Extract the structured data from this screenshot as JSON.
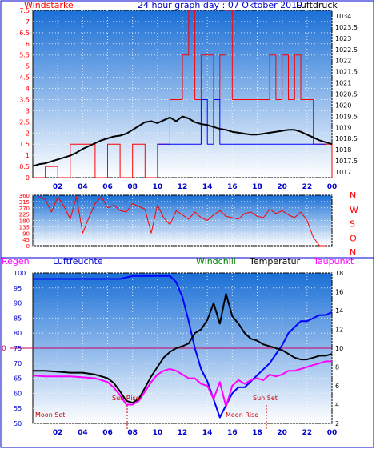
{
  "title": "24 hour graph day : 07 Oktober 2019",
  "colors": {
    "frame": "#0000cc",
    "wind": "#ff0000",
    "gust": "#0000ff",
    "pressure": "#000000",
    "temp": "#000000",
    "humid": "#0000ff",
    "dew": "#ff00ff",
    "windchill": "#008000",
    "zero": "#cc0066",
    "sky_top": "#1a6fd6",
    "sky_bottom": "#ffffff"
  },
  "x_ticks": [
    "02",
    "04",
    "06",
    "08",
    "10",
    "12",
    "14",
    "16",
    "18",
    "20",
    "22",
    "00"
  ],
  "chart_data": [
    {
      "type": "line",
      "title": "24 hour graph day : 07 Oktober 2019",
      "left_label": "Windstärke",
      "right_label": "Luftdruck",
      "left_ticks": [
        "7.5",
        "7",
        "6.5",
        "6",
        "5.5",
        "5",
        "4.5",
        "4",
        "3.5",
        "3",
        "2.5",
        "2",
        "1.5",
        "1",
        "0.5",
        "0"
      ],
      "right_ticks": [
        "1034",
        "1023.5",
        "1023",
        "1022.5",
        "1022",
        "1021.5",
        "1021",
        "1020.5",
        "1020",
        "1019.5",
        "1019",
        "1018.5",
        "1018",
        "1017.5",
        "1017"
      ],
      "ylim_left": [
        0,
        7.5
      ],
      "ylim_right": [
        1016.5,
        1034
      ],
      "series": [
        {
          "name": "Luftdruck",
          "x": [
            0,
            0.5,
            1,
            1.5,
            2,
            2.5,
            3,
            3.5,
            4,
            4.5,
            5,
            5.5,
            6,
            6.5,
            7,
            7.5,
            8,
            8.5,
            9,
            9.5,
            10,
            10.5,
            11,
            11.5,
            12,
            12.5,
            13,
            13.5,
            14,
            14.5,
            15,
            15.5,
            16,
            16.5,
            17,
            17.5,
            18,
            18.5,
            19,
            19.5,
            20,
            20.5,
            21,
            21.5,
            22,
            22.5,
            23,
            23.5,
            24
          ],
          "y": [
            1017.7,
            1017.9,
            1018.0,
            1018.2,
            1018.4,
            1018.6,
            1018.8,
            1019.1,
            1019.5,
            1019.8,
            1020.1,
            1020.4,
            1020.6,
            1020.8,
            1020.9,
            1021.1,
            1021.5,
            1021.9,
            1022.3,
            1022.4,
            1022.2,
            1022.5,
            1022.8,
            1022.4,
            1022.9,
            1022.7,
            1022.3,
            1022.1,
            1022.0,
            1021.8,
            1021.6,
            1021.5,
            1021.3,
            1021.2,
            1021.1,
            1021.0,
            1021.0,
            1021.1,
            1021.2,
            1021.3,
            1021.4,
            1021.5,
            1021.5,
            1021.3,
            1021.0,
            1020.7,
            1020.4,
            1020.2,
            1020.0
          ]
        },
        {
          "name": "Windstärke",
          "x": [
            0,
            1,
            2,
            3,
            4,
            5,
            6,
            7,
            8,
            9,
            10,
            10.5,
            11,
            11.5,
            12,
            12.5,
            13,
            13.5,
            14,
            14.5,
            15,
            15.5,
            16,
            16.5,
            17,
            17.5,
            18,
            18.5,
            19,
            19.5,
            20,
            20.5,
            21,
            21.5,
            22,
            22.5,
            23,
            23.5,
            24
          ],
          "y": [
            0,
            0.5,
            0,
            1.5,
            1.5,
            0,
            1.5,
            0,
            1.5,
            0,
            1.5,
            1.5,
            3.5,
            3.5,
            5.5,
            7.5,
            3.5,
            5.5,
            5.5,
            3.5,
            5.5,
            7.5,
            3.5,
            3.5,
            3.5,
            3.5,
            3.5,
            3.5,
            5.5,
            3.5,
            5.5,
            3.5,
            5.5,
            3.5,
            3.5,
            1.5,
            1.5,
            1.5,
            0
          ]
        },
        {
          "name": "Böen",
          "x": [
            10,
            10.5,
            11,
            11.5,
            12,
            12.5,
            13,
            13.5,
            14,
            14.5,
            15,
            15.5,
            16,
            16.5,
            17,
            17.5,
            18,
            18.5,
            19,
            19.5,
            20,
            20.5,
            21,
            21.5,
            22,
            22.5,
            23,
            23.5
          ],
          "y": [
            1.5,
            1.5,
            1.5,
            1.5,
            1.5,
            1.5,
            1.5,
            3.5,
            1.5,
            3.5,
            1.5,
            1.5,
            1.5,
            1.5,
            1.5,
            1.5,
            1.5,
            1.5,
            1.5,
            1.5,
            1.5,
            1.5,
            1.5,
            1.5,
            1.5,
            1.5,
            1.5,
            1.5
          ]
        }
      ]
    },
    {
      "type": "scatter",
      "left_ticks": [
        "360",
        "315",
        "270",
        "225",
        "180",
        "135",
        "90",
        "45",
        "0"
      ],
      "right_labels": [
        "N",
        "W",
        "S",
        "O",
        "N"
      ],
      "ylim": [
        0,
        360
      ],
      "series": [
        {
          "name": "Windrichtung",
          "x": [
            0.5,
            1,
            1.5,
            2,
            2.5,
            3,
            3.5,
            4,
            4.5,
            5,
            5.5,
            6,
            6.5,
            7,
            7.5,
            8,
            8.5,
            9,
            9.5,
            10,
            10.5,
            11,
            11.5,
            12,
            12.5,
            13,
            13.5,
            14,
            14.5,
            15,
            15.5,
            16,
            16.5,
            17,
            17.5,
            18,
            18.5,
            19,
            19.5,
            20,
            20.5,
            21,
            21.5,
            22,
            22.5,
            23,
            23.5
          ],
          "y": [
            350,
            330,
            240,
            350,
            280,
            190,
            350,
            90,
            200,
            300,
            350,
            270,
            290,
            250,
            240,
            300,
            280,
            260,
            90,
            290,
            200,
            150,
            250,
            220,
            190,
            240,
            200,
            180,
            220,
            250,
            210,
            200,
            190,
            230,
            240,
            210,
            200,
            260,
            230,
            250,
            220,
            200,
            240,
            180,
            60,
            0,
            0
          ]
        }
      ]
    },
    {
      "type": "line",
      "labels": {
        "regen": "Regen",
        "luftfeuchte": "Luftfeuchte",
        "windchill": "Windchill",
        "temperatur": "Temperatur",
        "taupunkt": "Taupunkt"
      },
      "left_ticks": [
        "100",
        "95",
        "90",
        "85",
        "80",
        "75",
        "70",
        "65",
        "60",
        "55",
        "50"
      ],
      "right_ticks": [
        "18",
        "16",
        "14",
        "12",
        "10",
        "8",
        "6",
        "4",
        "2"
      ],
      "zero_label": "0",
      "ylim_left": [
        50,
        100
      ],
      "ylim_right": [
        2,
        18
      ],
      "annotations": [
        "Moon Set",
        "Sun Rise",
        "Sun Set",
        "Moon Rise"
      ],
      "series": [
        {
          "name": "Luftfeuchte",
          "x": [
            0,
            1,
            2,
            3,
            4,
            5,
            6,
            7,
            8,
            9,
            10,
            11,
            11.5,
            12,
            12.5,
            13,
            13.5,
            14,
            14.5,
            15,
            15.5,
            16,
            16.5,
            17,
            17.5,
            18,
            18.5,
            19,
            19.5,
            20,
            20.5,
            21,
            21.5,
            22,
            22.5,
            23,
            23.5,
            24
          ],
          "y": [
            98,
            98,
            98,
            98,
            98,
            98,
            98,
            98,
            99,
            99,
            99,
            99,
            97,
            92,
            84,
            75,
            68,
            64,
            58,
            52,
            56,
            60,
            62,
            62,
            64,
            66,
            68,
            70,
            73,
            76,
            80,
            82,
            84,
            84,
            85,
            86,
            86,
            87
          ]
        },
        {
          "name": "Temperatur",
          "x": [
            0,
            1,
            2,
            3,
            4,
            5,
            6,
            6.5,
            7,
            7.5,
            8,
            8.5,
            9,
            9.5,
            10,
            10.5,
            11,
            11.5,
            12,
            12.5,
            13,
            13.5,
            14,
            14.5,
            15,
            15.5,
            16,
            16.5,
            17,
            17.5,
            18,
            18.5,
            19,
            19.5,
            20,
            20.5,
            21,
            21.5,
            22,
            22.5,
            23,
            23.5,
            24
          ],
          "y": [
            7.6,
            7.6,
            7.5,
            7.4,
            7.4,
            7.2,
            6.8,
            6.3,
            5.4,
            4.4,
            4.2,
            4.6,
            5.8,
            7.0,
            8.0,
            9.0,
            9.6,
            10.0,
            10.2,
            10.5,
            11.6,
            12.0,
            13.0,
            14.8,
            12.6,
            15.8,
            13.4,
            12.6,
            11.6,
            11.0,
            10.8,
            10.4,
            10.2,
            10.0,
            9.8,
            9.4,
            9.0,
            8.8,
            8.8,
            9.0,
            9.2,
            9.2,
            9.4
          ]
        },
        {
          "name": "Taupunkt",
          "x": [
            0,
            1,
            2,
            3,
            4,
            5,
            6,
            6.5,
            7,
            7.5,
            8,
            8.5,
            9,
            9.5,
            10,
            10.5,
            11,
            11.5,
            12,
            12.5,
            13,
            13.5,
            14,
            14.5,
            15,
            15.5,
            16,
            16.5,
            17,
            17.5,
            18,
            18.5,
            19,
            19.5,
            20,
            20.5,
            21,
            21.5,
            22,
            22.5,
            23,
            23.5,
            24
          ],
          "y": [
            7.1,
            7.0,
            7.0,
            7.0,
            6.9,
            6.8,
            6.4,
            5.8,
            5.0,
            4.0,
            4.0,
            4.4,
            5.4,
            6.4,
            7.2,
            7.6,
            7.8,
            7.6,
            7.2,
            6.8,
            6.8,
            6.2,
            6.0,
            4.6,
            6.4,
            3.8,
            6.0,
            6.6,
            6.2,
            6.6,
            6.8,
            6.6,
            7.2,
            7.0,
            7.2,
            7.6,
            7.6,
            7.8,
            8.0,
            8.2,
            8.4,
            8.6,
            8.6
          ]
        }
      ]
    }
  ]
}
